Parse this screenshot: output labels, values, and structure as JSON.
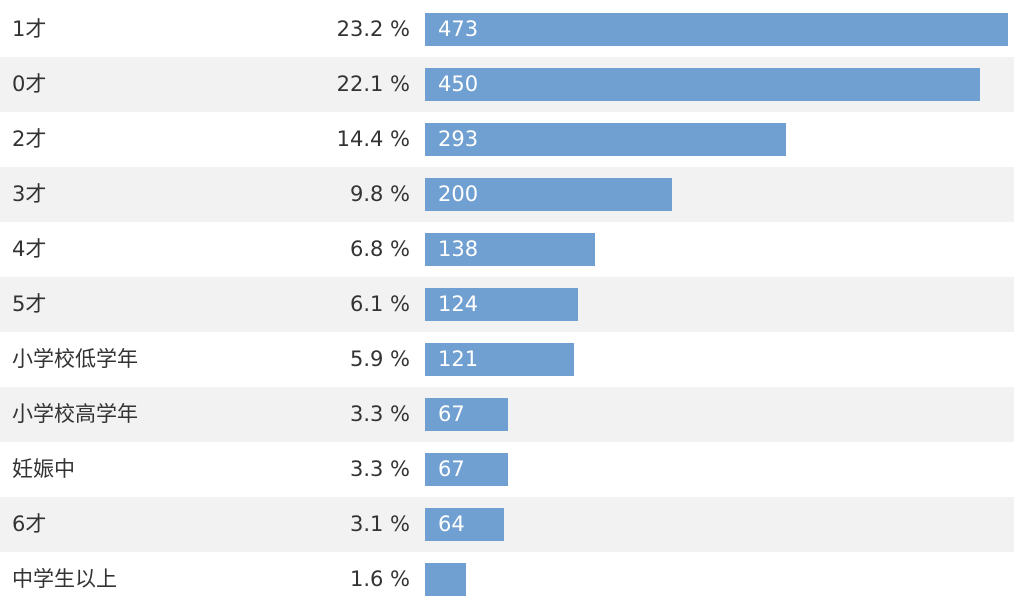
{
  "chart_data": {
    "type": "bar",
    "orientation": "horizontal",
    "categories": [
      "1才",
      "0才",
      "2才",
      "3才",
      "4才",
      "5才",
      "小学校低学年",
      "小学校高学年",
      "妊娠中",
      "6才",
      "中学生以上"
    ],
    "values": [
      473,
      450,
      293,
      200,
      138,
      124,
      121,
      67,
      67,
      64,
      33
    ],
    "value_labels": [
      "473",
      "450",
      "293",
      "200",
      "138",
      "124",
      "121",
      "67",
      "67",
      "64",
      ""
    ],
    "percent_labels": [
      "23.2 %",
      "22.1 %",
      "14.4 %",
      "9.8 %",
      "6.8 %",
      "6.1 %",
      "5.9 %",
      "3.3 %",
      "3.3 %",
      "3.1 %",
      "1.6 %"
    ],
    "title": "",
    "xlabel": "",
    "ylabel": "",
    "xlim": [
      0,
      473
    ],
    "grid": false,
    "bar_color": "#709fd1",
    "alt_row_color": "#f2f2f2"
  }
}
